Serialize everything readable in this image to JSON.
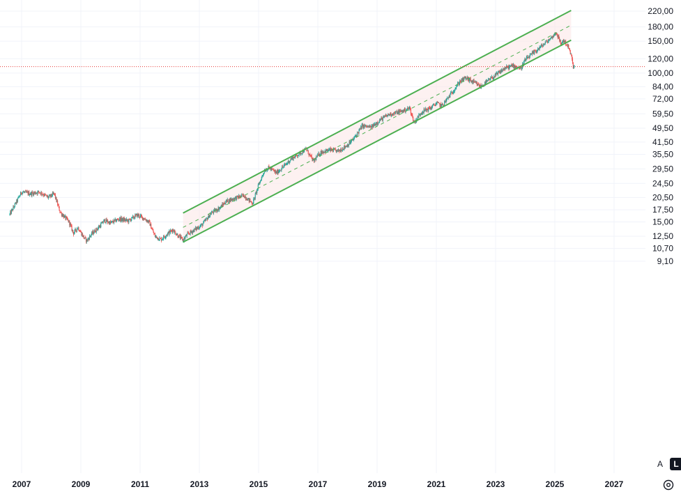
{
  "chart_data": {
    "type": "candlestick",
    "scale": "log",
    "grid": true,
    "ylim": [
      8.3,
      235
    ],
    "xlim": [
      2006.55,
      2027.55
    ],
    "y_ticks": [
      "220,00",
      "180,00",
      "150,00",
      "120,00",
      "100,00",
      "84,00",
      "72,00",
      "59,50",
      "49,50",
      "41,50",
      "35,50",
      "29,50",
      "24,50",
      "20,50",
      "17,50",
      "15,00",
      "12,50",
      "10,70",
      "9,10"
    ],
    "x_ticks": [
      "2007",
      "2009",
      "2011",
      "2013",
      "2015",
      "2017",
      "2019",
      "2021",
      "2023",
      "2025",
      "2027"
    ],
    "price_path": [
      [
        2006.6,
        16.5
      ],
      [
        2006.8,
        19.0
      ],
      [
        2007.0,
        22.0
      ],
      [
        2007.3,
        21.5
      ],
      [
        2007.6,
        22.0
      ],
      [
        2007.9,
        20.5
      ],
      [
        2008.1,
        21.5
      ],
      [
        2008.3,
        17.0
      ],
      [
        2008.6,
        15.0
      ],
      [
        2008.75,
        13.0
      ],
      [
        2008.9,
        14.0
      ],
      [
        2009.1,
        12.3
      ],
      [
        2009.2,
        11.8
      ],
      [
        2009.35,
        12.8
      ],
      [
        2009.6,
        14.0
      ],
      [
        2009.8,
        15.3
      ],
      [
        2010.0,
        14.8
      ],
      [
        2010.3,
        15.6
      ],
      [
        2010.6,
        15.2
      ],
      [
        2010.9,
        16.4
      ],
      [
        2011.1,
        15.8
      ],
      [
        2011.3,
        15.0
      ],
      [
        2011.5,
        12.5
      ],
      [
        2011.7,
        12.0
      ],
      [
        2011.9,
        12.8
      ],
      [
        2012.1,
        13.6
      ],
      [
        2012.3,
        12.5
      ],
      [
        2012.45,
        11.9
      ],
      [
        2012.6,
        12.8
      ],
      [
        2012.9,
        13.8
      ],
      [
        2013.1,
        14.5
      ],
      [
        2013.4,
        16.8
      ],
      [
        2013.7,
        18.0
      ],
      [
        2013.9,
        19.5
      ],
      [
        2014.2,
        20.3
      ],
      [
        2014.5,
        21.0
      ],
      [
        2014.8,
        19.0
      ],
      [
        2015.0,
        24.0
      ],
      [
        2015.2,
        29.0
      ],
      [
        2015.35,
        30.0
      ],
      [
        2015.6,
        28.0
      ],
      [
        2015.9,
        31.0
      ],
      [
        2016.1,
        33.5
      ],
      [
        2016.4,
        36.0
      ],
      [
        2016.6,
        38.0
      ],
      [
        2016.85,
        32.5
      ],
      [
        2017.1,
        36.5
      ],
      [
        2017.4,
        37.5
      ],
      [
        2017.7,
        37.0
      ],
      [
        2018.0,
        40.0
      ],
      [
        2018.2,
        43.0
      ],
      [
        2018.5,
        51.0
      ],
      [
        2018.8,
        50.0
      ],
      [
        2019.1,
        55.0
      ],
      [
        2019.4,
        59.0
      ],
      [
        2019.6,
        60.0
      ],
      [
        2019.9,
        62.0
      ],
      [
        2020.1,
        64.0
      ],
      [
        2020.25,
        53.0
      ],
      [
        2020.5,
        61.0
      ],
      [
        2020.8,
        64.0
      ],
      [
        2021.0,
        68.0
      ],
      [
        2021.2,
        66.0
      ],
      [
        2021.5,
        77.0
      ],
      [
        2021.8,
        90.0
      ],
      [
        2022.0,
        94.0
      ],
      [
        2022.3,
        88.0
      ],
      [
        2022.5,
        84.0
      ],
      [
        2022.8,
        92.0
      ],
      [
        2023.0,
        97.0
      ],
      [
        2023.3,
        106.0
      ],
      [
        2023.6,
        110.0
      ],
      [
        2023.85,
        106.0
      ],
      [
        2024.0,
        118.0
      ],
      [
        2024.3,
        130.0
      ],
      [
        2024.6,
        143.0
      ],
      [
        2024.85,
        155.0
      ],
      [
        2025.05,
        168.0
      ],
      [
        2025.2,
        145.0
      ],
      [
        2025.3,
        152.0
      ],
      [
        2025.45,
        140.0
      ],
      [
        2025.55,
        125.0
      ],
      [
        2025.62,
        109.0
      ],
      [
        2025.67,
        108.0
      ]
    ],
    "channel": {
      "upper": [
        [
          2012.45,
          16.8
        ],
        [
          2025.55,
          222.0
        ]
      ],
      "lower": [
        [
          2012.45,
          11.6
        ],
        [
          2025.55,
          152.0
        ]
      ],
      "middle": [
        [
          2012.45,
          14.0
        ],
        [
          2025.55,
          184.0
        ]
      ],
      "line_color": "#4caf50",
      "fill_color": "#fbe7e7"
    },
    "last_price_line": 108.5,
    "last_price_line_color": "#e53935",
    "up_color": "#26a69a",
    "down_color": "#ef5350"
  },
  "controls": {
    "auto_label": "A",
    "log_label": "L",
    "settings_icon": "settings-gear-icon"
  }
}
